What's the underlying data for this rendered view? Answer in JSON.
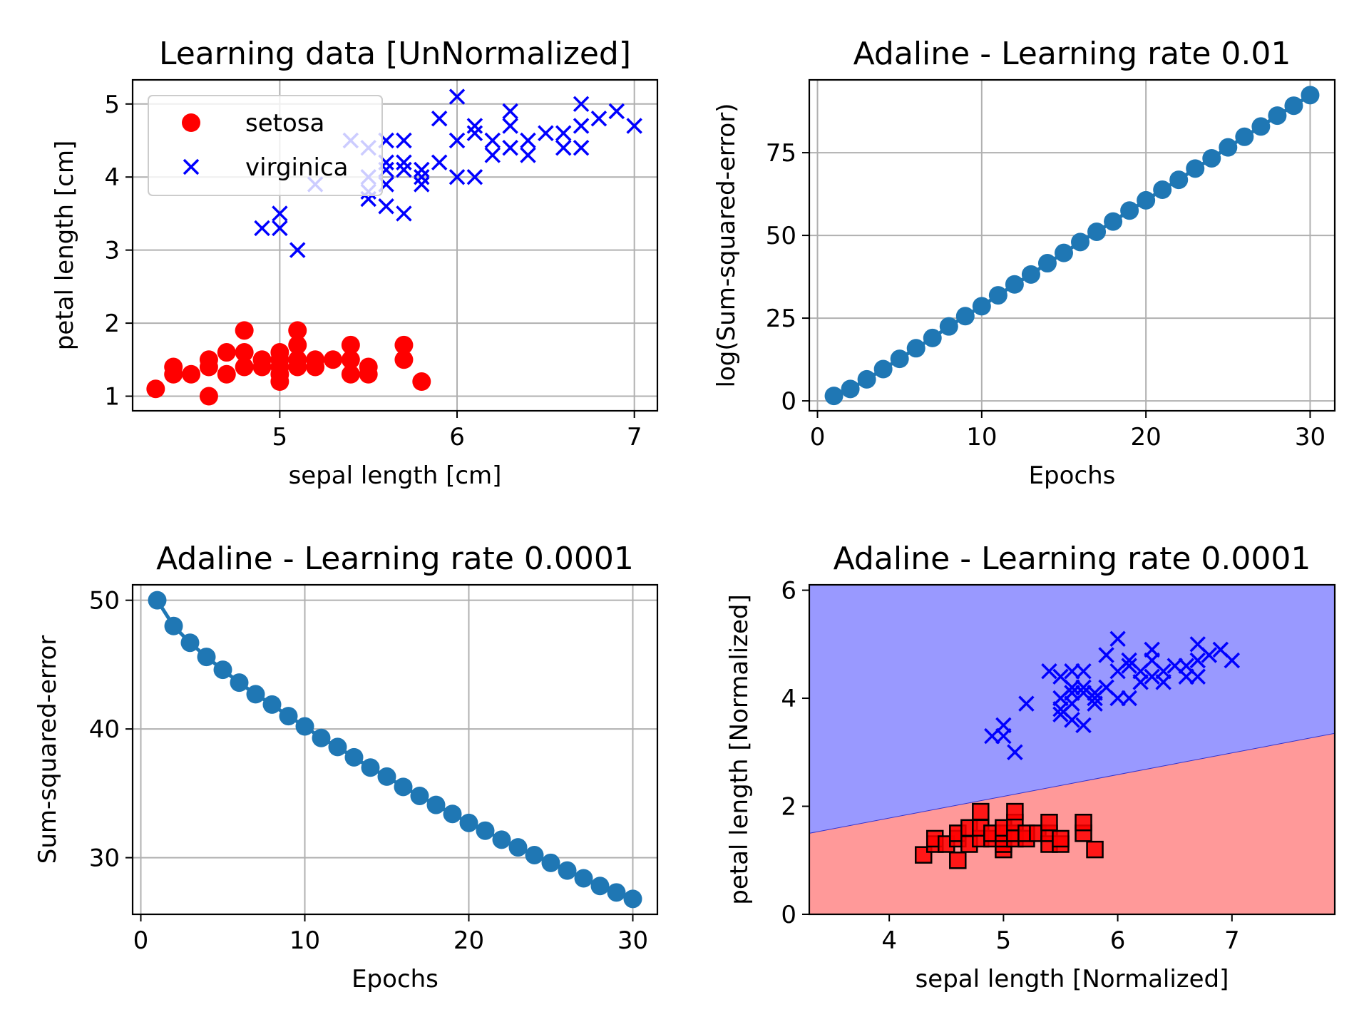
{
  "chart_data": [
    {
      "type": "scatter",
      "title": "Learning data [UnNormalized]",
      "xlabel": "sepal length [cm]",
      "ylabel": "petal length [cm]",
      "xlim": [
        4.17,
        7.13
      ],
      "ylim": [
        0.8,
        5.33
      ],
      "xticks": [
        5,
        6,
        7
      ],
      "yticks": [
        1,
        2,
        3,
        4,
        5
      ],
      "grid": true,
      "legend": {
        "placement": "upper-left",
        "entries": [
          "setosa",
          "virginica"
        ]
      },
      "series": [
        {
          "name": "setosa",
          "marker": "circle",
          "color": "#ff0000",
          "points": [
            [
              4.3,
              1.1
            ],
            [
              4.4,
              1.3
            ],
            [
              4.4,
              1.4
            ],
            [
              4.5,
              1.3
            ],
            [
              4.6,
              1.0
            ],
            [
              4.6,
              1.4
            ],
            [
              4.6,
              1.5
            ],
            [
              4.7,
              1.3
            ],
            [
              4.7,
              1.6
            ],
            [
              4.8,
              1.4
            ],
            [
              4.8,
              1.6
            ],
            [
              4.8,
              1.9
            ],
            [
              4.9,
              1.4
            ],
            [
              4.9,
              1.5
            ],
            [
              5.0,
              1.2
            ],
            [
              5.0,
              1.3
            ],
            [
              5.0,
              1.4
            ],
            [
              5.0,
              1.5
            ],
            [
              5.0,
              1.6
            ],
            [
              5.1,
              1.4
            ],
            [
              5.1,
              1.5
            ],
            [
              5.1,
              1.7
            ],
            [
              5.1,
              1.9
            ],
            [
              5.2,
              1.4
            ],
            [
              5.2,
              1.5
            ],
            [
              5.3,
              1.5
            ],
            [
              5.4,
              1.3
            ],
            [
              5.4,
              1.5
            ],
            [
              5.4,
              1.7
            ],
            [
              5.5,
              1.3
            ],
            [
              5.5,
              1.4
            ],
            [
              5.7,
              1.5
            ],
            [
              5.7,
              1.7
            ],
            [
              5.8,
              1.2
            ]
          ]
        },
        {
          "name": "virginica",
          "marker": "x",
          "color": "#0000ff",
          "points": [
            [
              4.9,
              3.3
            ],
            [
              5.0,
              3.3
            ],
            [
              5.0,
              3.5
            ],
            [
              5.1,
              3.0
            ],
            [
              5.2,
              3.9
            ],
            [
              5.4,
              4.5
            ],
            [
              5.5,
              3.7
            ],
            [
              5.5,
              3.8
            ],
            [
              5.5,
              4.0
            ],
            [
              5.5,
              4.4
            ],
            [
              5.6,
              3.6
            ],
            [
              5.6,
              3.9
            ],
            [
              5.6,
              4.1
            ],
            [
              5.6,
              4.2
            ],
            [
              5.6,
              4.5
            ],
            [
              5.7,
              3.5
            ],
            [
              5.7,
              4.1
            ],
            [
              5.7,
              4.2
            ],
            [
              5.7,
              4.5
            ],
            [
              5.8,
              3.9
            ],
            [
              5.8,
              4.0
            ],
            [
              5.8,
              4.1
            ],
            [
              5.9,
              4.2
            ],
            [
              5.9,
              4.8
            ],
            [
              6.0,
              4.0
            ],
            [
              6.0,
              4.5
            ],
            [
              6.0,
              5.1
            ],
            [
              6.1,
              4.0
            ],
            [
              6.1,
              4.6
            ],
            [
              6.1,
              4.7
            ],
            [
              6.2,
              4.3
            ],
            [
              6.2,
              4.5
            ],
            [
              6.3,
              4.4
            ],
            [
              6.3,
              4.7
            ],
            [
              6.3,
              4.9
            ],
            [
              6.4,
              4.3
            ],
            [
              6.4,
              4.5
            ],
            [
              6.5,
              4.6
            ],
            [
              6.6,
              4.4
            ],
            [
              6.6,
              4.6
            ],
            [
              6.7,
              4.4
            ],
            [
              6.7,
              4.7
            ],
            [
              6.7,
              5.0
            ],
            [
              6.8,
              4.8
            ],
            [
              6.9,
              4.9
            ],
            [
              7.0,
              4.7
            ]
          ]
        }
      ]
    },
    {
      "type": "line",
      "title": "Adaline - Learning rate 0.01",
      "xlabel": "Epochs",
      "ylabel": "log(Sum-squared-error)",
      "xlim": [
        -0.5,
        31.5
      ],
      "ylim": [
        -3,
        97
      ],
      "xticks": [
        0,
        10,
        20,
        30
      ],
      "yticks": [
        0,
        25,
        50,
        75
      ],
      "grid": true,
      "marker": "circle",
      "color": "#1f77b4",
      "x": [
        1,
        2,
        3,
        4,
        5,
        6,
        7,
        8,
        9,
        10,
        11,
        12,
        13,
        14,
        15,
        16,
        17,
        18,
        19,
        20,
        21,
        22,
        23,
        24,
        25,
        26,
        27,
        28,
        29,
        30
      ],
      "y": [
        1.5,
        3.6,
        6.5,
        9.6,
        12.7,
        15.9,
        19.0,
        22.5,
        25.6,
        28.6,
        31.9,
        35.2,
        38.2,
        41.6,
        44.7,
        48.0,
        51.1,
        54.2,
        57.5,
        60.6,
        63.8,
        66.8,
        70.2,
        73.3,
        76.6,
        79.8,
        82.9,
        86.2,
        89.2,
        92.4
      ]
    },
    {
      "type": "line",
      "title": "Adaline - Learning rate 0.0001",
      "xlabel": "Epochs",
      "ylabel": "Sum-squared-error",
      "xlim": [
        -0.5,
        31.5
      ],
      "ylim": [
        25.6,
        51.2
      ],
      "xticks": [
        0,
        10,
        20,
        30
      ],
      "yticks": [
        30,
        40,
        50
      ],
      "grid": true,
      "marker": "circle",
      "color": "#1f77b4",
      "x": [
        1,
        2,
        3,
        4,
        5,
        6,
        7,
        8,
        9,
        10,
        11,
        12,
        13,
        14,
        15,
        16,
        17,
        18,
        19,
        20,
        21,
        22,
        23,
        24,
        25,
        26,
        27,
        28,
        29,
        30
      ],
      "y": [
        50.0,
        48.0,
        46.7,
        45.6,
        44.6,
        43.6,
        42.7,
        41.9,
        41.0,
        40.2,
        39.3,
        38.6,
        37.8,
        37.0,
        36.3,
        35.5,
        34.8,
        34.1,
        33.4,
        32.7,
        32.1,
        31.4,
        30.8,
        30.2,
        29.6,
        29.0,
        28.4,
        27.8,
        27.3,
        26.8
      ]
    },
    {
      "type": "scatter",
      "title": "Adaline - Learning rate 0.0001",
      "xlabel": "sepal length [Normalized]",
      "ylabel": "petal length [Normalized]",
      "xlim": [
        3.3,
        7.9
      ],
      "ylim": [
        0,
        6.1
      ],
      "xticks": [
        4,
        5,
        6,
        7
      ],
      "yticks": [
        0,
        2,
        4,
        6
      ],
      "grid": false,
      "decision_regions": {
        "class_a_color": "#ff9999",
        "class_b_color": "#9999ff",
        "boundary": [
          [
            3.3,
            1.5
          ],
          [
            7.9,
            3.35
          ]
        ]
      },
      "series": [
        {
          "name": "setosa",
          "marker": "square",
          "color": "#ff0000",
          "points": [
            [
              4.3,
              1.1
            ],
            [
              4.4,
              1.3
            ],
            [
              4.4,
              1.4
            ],
            [
              4.5,
              1.3
            ],
            [
              4.6,
              1.0
            ],
            [
              4.6,
              1.4
            ],
            [
              4.6,
              1.5
            ],
            [
              4.7,
              1.3
            ],
            [
              4.7,
              1.6
            ],
            [
              4.8,
              1.4
            ],
            [
              4.8,
              1.6
            ],
            [
              4.8,
              1.9
            ],
            [
              4.9,
              1.4
            ],
            [
              4.9,
              1.5
            ],
            [
              5.0,
              1.2
            ],
            [
              5.0,
              1.3
            ],
            [
              5.0,
              1.4
            ],
            [
              5.0,
              1.5
            ],
            [
              5.0,
              1.6
            ],
            [
              5.1,
              1.4
            ],
            [
              5.1,
              1.5
            ],
            [
              5.1,
              1.7
            ],
            [
              5.1,
              1.9
            ],
            [
              5.2,
              1.4
            ],
            [
              5.2,
              1.5
            ],
            [
              5.3,
              1.5
            ],
            [
              5.4,
              1.3
            ],
            [
              5.4,
              1.5
            ],
            [
              5.4,
              1.7
            ],
            [
              5.5,
              1.3
            ],
            [
              5.5,
              1.4
            ],
            [
              5.7,
              1.5
            ],
            [
              5.7,
              1.7
            ],
            [
              5.8,
              1.2
            ]
          ]
        },
        {
          "name": "virginica",
          "marker": "x",
          "color": "#0000ff",
          "points": [
            [
              4.9,
              3.3
            ],
            [
              5.0,
              3.3
            ],
            [
              5.0,
              3.5
            ],
            [
              5.1,
              3.0
            ],
            [
              5.2,
              3.9
            ],
            [
              5.4,
              4.5
            ],
            [
              5.5,
              3.7
            ],
            [
              5.5,
              3.8
            ],
            [
              5.5,
              4.0
            ],
            [
              5.5,
              4.4
            ],
            [
              5.6,
              3.6
            ],
            [
              5.6,
              3.9
            ],
            [
              5.6,
              4.1
            ],
            [
              5.6,
              4.2
            ],
            [
              5.6,
              4.5
            ],
            [
              5.7,
              3.5
            ],
            [
              5.7,
              4.1
            ],
            [
              5.7,
              4.2
            ],
            [
              5.7,
              4.5
            ],
            [
              5.8,
              3.9
            ],
            [
              5.8,
              4.0
            ],
            [
              5.8,
              4.1
            ],
            [
              5.9,
              4.2
            ],
            [
              5.9,
              4.8
            ],
            [
              6.0,
              4.0
            ],
            [
              6.0,
              4.5
            ],
            [
              6.0,
              5.1
            ],
            [
              6.1,
              4.0
            ],
            [
              6.1,
              4.6
            ],
            [
              6.1,
              4.7
            ],
            [
              6.2,
              4.3
            ],
            [
              6.2,
              4.5
            ],
            [
              6.3,
              4.4
            ],
            [
              6.3,
              4.7
            ],
            [
              6.3,
              4.9
            ],
            [
              6.4,
              4.3
            ],
            [
              6.4,
              4.5
            ],
            [
              6.5,
              4.6
            ],
            [
              6.6,
              4.4
            ],
            [
              6.6,
              4.6
            ],
            [
              6.7,
              4.4
            ],
            [
              6.7,
              4.7
            ],
            [
              6.7,
              5.0
            ],
            [
              6.8,
              4.8
            ],
            [
              6.9,
              4.9
            ],
            [
              7.0,
              4.7
            ]
          ]
        }
      ]
    }
  ]
}
